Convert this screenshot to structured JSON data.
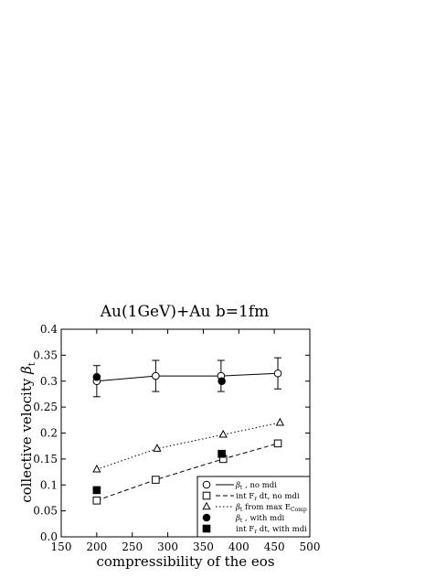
{
  "chart_data": {
    "type": "line",
    "title": "Au(1GeV)+Au b=1fm",
    "xlabel": "compressibility of the eos",
    "ylabel_text": "collective velocity ",
    "ylabel_symbol": "β",
    "ylabel_sub": "t",
    "xlim": [
      150,
      500
    ],
    "ylim": [
      0,
      0.4
    ],
    "xticks": [
      150,
      200,
      250,
      300,
      350,
      400,
      450,
      500
    ],
    "yticks": [
      0,
      0.05,
      0.1,
      0.15,
      0.2,
      0.25,
      0.3,
      0.35,
      0.4
    ],
    "xtick_labels": [
      "150",
      "200",
      "250",
      "300",
      "350",
      "400",
      "450",
      "500"
    ],
    "ytick_labels": [
      "0.0",
      "0.05",
      "0.1",
      "0.15",
      "0.2",
      "0.25",
      "0.3",
      "0.35",
      "0.4"
    ],
    "grid": false,
    "legend_position": "bottom-right",
    "series": [
      {
        "label_main": "β",
        "label_sub": "t",
        "label_rest": " , no mdi",
        "label_suffix": "",
        "marker": "open-circle",
        "line": "solid",
        "x": [
          200,
          283,
          375,
          455
        ],
        "y": [
          0.3,
          0.31,
          0.31,
          0.315
        ],
        "error": [
          0.03,
          0.03,
          0.03,
          0.03
        ]
      },
      {
        "label_main": "int F",
        "label_sub": "r",
        "label_rest": " dt, no mdi",
        "label_suffix": "",
        "marker": "open-square",
        "line": "dashed",
        "x": [
          200,
          283,
          378,
          455
        ],
        "y": [
          0.07,
          0.11,
          0.15,
          0.18
        ]
      },
      {
        "label_main": "β",
        "label_sub": "t",
        "label_rest": " from max E",
        "label_suffix": "Comp",
        "marker": "open-triangle",
        "line": "dotted",
        "x": [
          200,
          285,
          378,
          458
        ],
        "y": [
          0.13,
          0.17,
          0.197,
          0.22
        ]
      },
      {
        "label_main": "β",
        "label_sub": "t",
        "label_rest": " , with mdi",
        "label_suffix": "",
        "marker": "filled-circle",
        "line": "none",
        "x": [
          200,
          376
        ],
        "y": [
          0.308,
          0.3
        ]
      },
      {
        "label_main": "int F",
        "label_sub": "r",
        "label_rest": " dt, with mdi",
        "label_suffix": "",
        "marker": "filled-square",
        "line": "none",
        "x": [
          200,
          376
        ],
        "y": [
          0.09,
          0.16
        ]
      }
    ]
  }
}
